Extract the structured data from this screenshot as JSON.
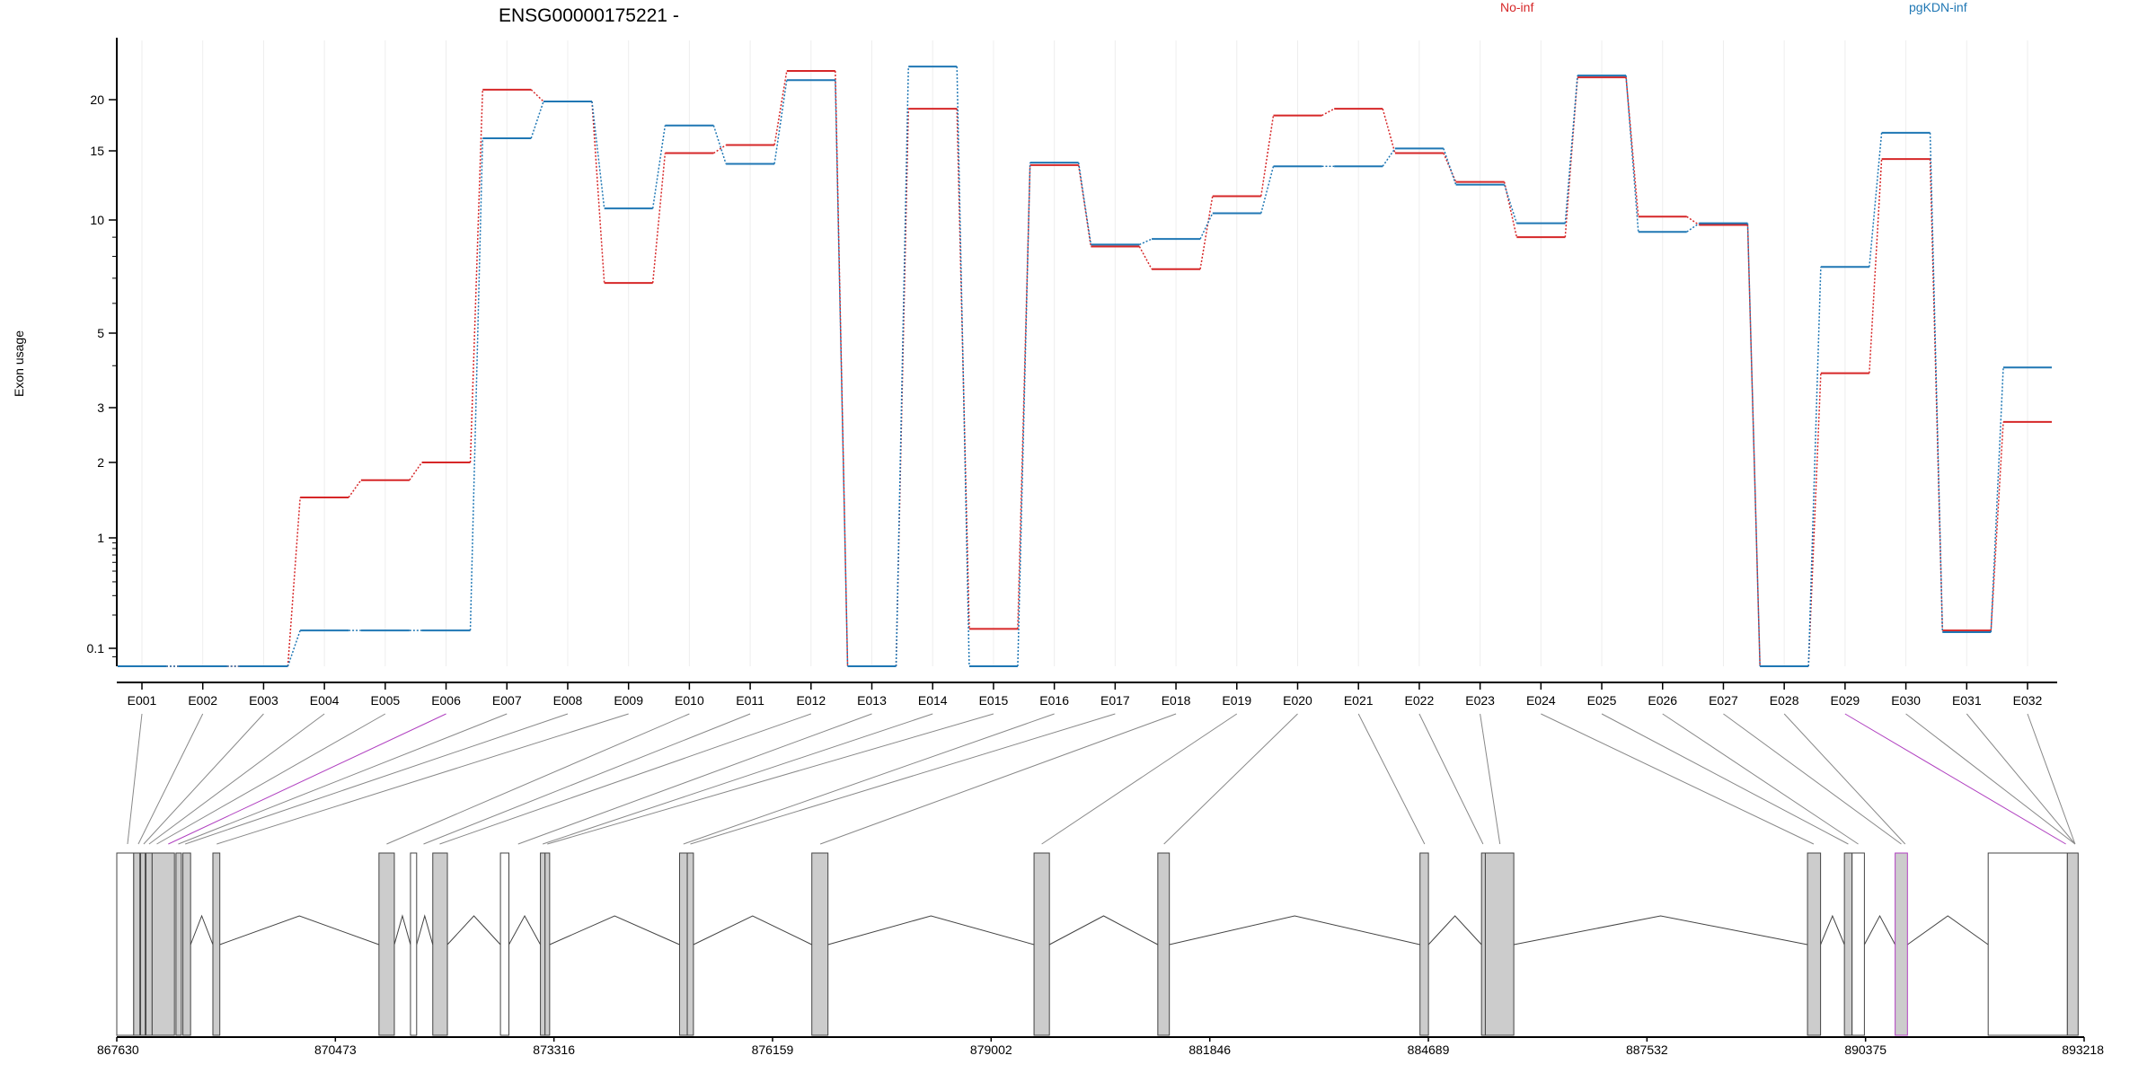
{
  "title": "ENSG00000175221 -",
  "legend": [
    {
      "label": "No-inf",
      "color": "#d62728"
    },
    {
      "label": "pgKDN-inf",
      "color": "#1f77b4"
    }
  ],
  "colors": {
    "highlight": "#b040c0",
    "exon_fill": "#cccccc",
    "exon_stroke": "#444444"
  },
  "chart_data": {
    "type": "line",
    "title": "ENSG00000175221 -",
    "ylabel": "Exon usage",
    "xlabel": "",
    "y_scale": "log",
    "yticks": [
      0.1,
      1,
      2,
      3,
      5,
      10,
      15,
      20
    ],
    "ytick_labels": [
      "0.1",
      "1",
      "2",
      "3",
      "5",
      "10",
      "15",
      "20"
    ],
    "categories": [
      "E001",
      "E002",
      "E003",
      "E004",
      "E005",
      "E006",
      "E007",
      "E008",
      "E009",
      "E010",
      "E011",
      "E012",
      "E013",
      "E014",
      "E015",
      "E016",
      "E017",
      "E018",
      "E019",
      "E020",
      "E021",
      "E022",
      "E023",
      "E024",
      "E025",
      "E026",
      "E027",
      "E028",
      "E029",
      "E030",
      "E031",
      "E032"
    ],
    "series": [
      {
        "name": "No-inf",
        "color": "#d62728",
        "values": [
          0.08,
          0.08,
          0.08,
          1.45,
          1.7,
          2.0,
          21.0,
          19.8,
          6.8,
          14.8,
          15.5,
          23.0,
          0.08,
          19.0,
          0.15,
          13.8,
          8.5,
          7.4,
          11.5,
          18.3,
          19.0,
          14.8,
          12.5,
          9.0,
          22.3,
          10.2,
          9.7,
          0.08,
          3.8,
          14.3,
          0.145,
          2.7
        ]
      },
      {
        "name": "pgKDN-inf",
        "color": "#1f77b4",
        "values": [
          0.08,
          0.08,
          0.08,
          0.145,
          0.145,
          0.145,
          16.1,
          19.8,
          10.7,
          17.3,
          13.9,
          22.0,
          0.08,
          23.5,
          0.08,
          14.0,
          8.6,
          8.9,
          10.4,
          13.7,
          13.7,
          15.2,
          12.3,
          9.8,
          22.5,
          9.3,
          9.8,
          0.08,
          7.5,
          16.6,
          0.14,
          3.95
        ]
      }
    ],
    "highlight_exons": [
      "E006",
      "E029"
    ],
    "grid": true
  },
  "gene_model": {
    "tick_labels": [
      "867630",
      "870473",
      "873316",
      "876159",
      "879002",
      "881846",
      "884689",
      "887532",
      "890375",
      "893218"
    ],
    "tick_positions": [
      867630,
      870473,
      873316,
      876159,
      879002,
      881846,
      884689,
      887532,
      890375,
      893218
    ],
    "range": [
      867630,
      893218
    ],
    "exon_blocks": [
      {
        "start": 867630,
        "end": 867850,
        "fill": false
      },
      {
        "start": 867850,
        "end": 867930,
        "fill": true
      },
      {
        "start": 867940,
        "end": 868000,
        "fill": true
      },
      {
        "start": 868010,
        "end": 868090,
        "fill": true
      },
      {
        "start": 868090,
        "end": 868380,
        "fill": true
      },
      {
        "start": 868400,
        "end": 868470,
        "fill": true
      },
      {
        "start": 868490,
        "end": 868590,
        "fill": true
      },
      {
        "start": 868880,
        "end": 868970,
        "fill": true
      },
      {
        "start": 871040,
        "end": 871240,
        "fill": true
      },
      {
        "start": 871450,
        "end": 871530,
        "fill": false
      },
      {
        "start": 871740,
        "end": 871930,
        "fill": true
      },
      {
        "start": 872620,
        "end": 872730,
        "fill": false
      },
      {
        "start": 873140,
        "end": 873200,
        "fill": true
      },
      {
        "start": 873200,
        "end": 873260,
        "fill": true
      },
      {
        "start": 874950,
        "end": 875050,
        "fill": true
      },
      {
        "start": 875050,
        "end": 875130,
        "fill": true
      },
      {
        "start": 876670,
        "end": 876880,
        "fill": true
      },
      {
        "start": 879560,
        "end": 879760,
        "fill": true
      },
      {
        "start": 881170,
        "end": 881320,
        "fill": true
      },
      {
        "start": 884580,
        "end": 884690,
        "fill": true
      },
      {
        "start": 885380,
        "end": 885430,
        "fill": true
      },
      {
        "start": 885430,
        "end": 885800,
        "fill": true
      },
      {
        "start": 889620,
        "end": 889790,
        "fill": true
      },
      {
        "start": 890100,
        "end": 890200,
        "fill": true
      },
      {
        "start": 890200,
        "end": 890360,
        "fill": false
      },
      {
        "start": 890760,
        "end": 890920,
        "fill": true,
        "highlight": true
      },
      {
        "start": 891970,
        "end": 893000,
        "fill": false
      },
      {
        "start": 893000,
        "end": 893140,
        "fill": true
      }
    ],
    "introns": [
      [
        868970,
        871040
      ],
      [
        871240,
        871450
      ],
      [
        871530,
        871740
      ],
      [
        871930,
        872620
      ],
      [
        872730,
        873140
      ],
      [
        873260,
        874950
      ],
      [
        875130,
        876670
      ],
      [
        876880,
        879560
      ],
      [
        879760,
        881170
      ],
      [
        881320,
        884580
      ],
      [
        884690,
        885380
      ],
      [
        885800,
        889620
      ],
      [
        889790,
        890100
      ],
      [
        890360,
        890760
      ],
      [
        890920,
        891970
      ],
      [
        868590,
        868880
      ]
    ],
    "connector_targets": [
      867770,
      867910,
      867980,
      868050,
      868150,
      868300,
      868430,
      868520,
      868930,
      871140,
      871620,
      871830,
      872850,
      873170,
      873230,
      875000,
      875090,
      876780,
      879660,
      881250,
      884640,
      885400,
      885620,
      889700,
      890150,
      890280,
      890840,
      890890,
      892980,
      893100
    ]
  }
}
